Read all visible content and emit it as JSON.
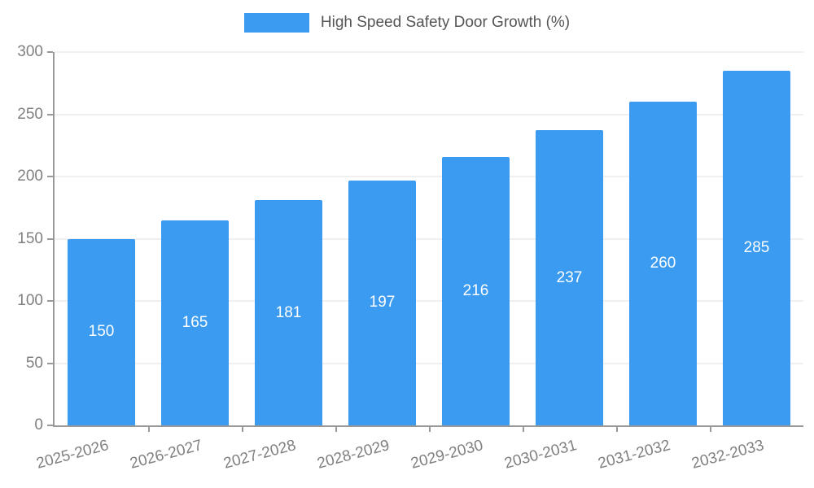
{
  "chart_data": {
    "type": "bar",
    "title": "High Speed Safety Door Growth (%)",
    "categories": [
      "2025-2026",
      "2026-2027",
      "2027-2028",
      "2028-2029",
      "2029-2030",
      "2030-2031",
      "2031-2032",
      "2032-2033"
    ],
    "values": [
      150,
      165,
      181,
      197,
      216,
      237,
      260,
      285
    ],
    "xlabel": "",
    "ylabel": "",
    "ylim": [
      0,
      300
    ],
    "yticks": [
      0,
      50,
      100,
      150,
      200,
      250,
      300
    ],
    "grid": true,
    "legend_position": "top",
    "bar_color": "#3b9bf0",
    "value_label_color": "#ffffff",
    "axis_color": "#999999",
    "tick_label_color": "#808080",
    "legend_text_color": "#555555"
  }
}
